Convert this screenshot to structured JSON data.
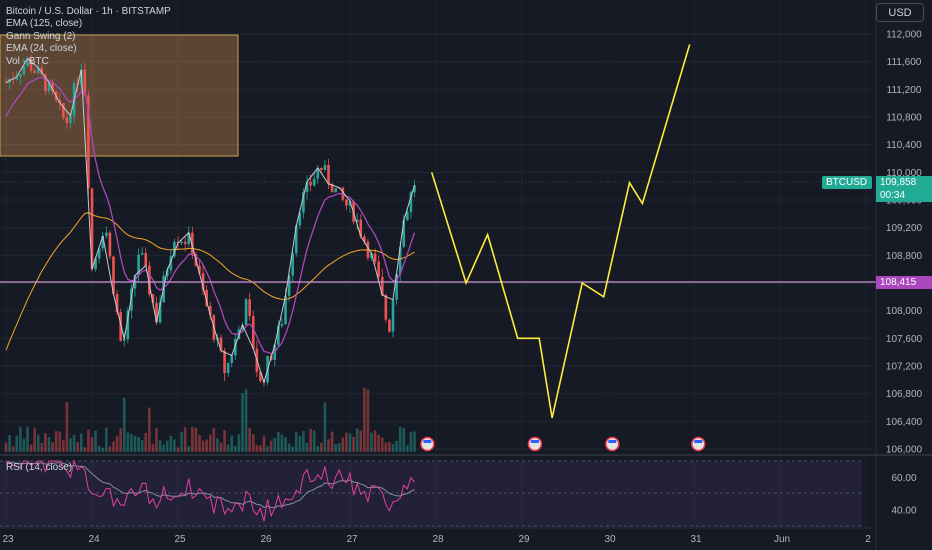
{
  "legend": {
    "symbol": "Bitcoin / U.S. Dollar · 1h · BITSTAMP",
    "ema125": "EMA (125, close)",
    "gann": "Gann Swing (2)",
    "ema24": "EMA (24, close)",
    "vol": "Vol · BTC"
  },
  "rsi_legend": "RSI (14, close)",
  "currency_button": "USD",
  "tags": {
    "ticker": "BTCUSD",
    "last_price": "109,858",
    "countdown": "00:34",
    "level_price": "108,415"
  },
  "colors": {
    "up": "#26a69a",
    "down": "#ef5350",
    "ema24": "#ab47bc",
    "ema125": "#f6a623",
    "projection": "#ffeb3b",
    "level": "#ce93d8",
    "rsi": "#e040a0",
    "ticker_tag": "#22ab94"
  },
  "chart_data": {
    "type": "candlestick",
    "price_axis": [
      "112,000",
      "111,600",
      "111,200",
      "110,800",
      "110,400",
      "110,000",
      "109,600",
      "109,200",
      "108,800",
      "108,400",
      "108,000",
      "107,600",
      "107,200",
      "106,800",
      "106,400",
      "106,000"
    ],
    "time_axis": [
      "23",
      "24",
      "25",
      "26",
      "27",
      "28",
      "29",
      "30",
      "31",
      "Jun",
      "2"
    ],
    "rsi_axis": [
      "60.00",
      "40.00"
    ],
    "horizontal_level": 108415,
    "last_price": 109858,
    "projection_path": [
      {
        "date": "27.95",
        "price": 110000
      },
      {
        "date": "28.35",
        "price": 108400
      },
      {
        "date": "28.6",
        "price": 109100
      },
      {
        "date": "28.95",
        "price": 107600
      },
      {
        "date": "29.2",
        "price": 107600
      },
      {
        "date": "29.35",
        "price": 106450
      },
      {
        "date": "29.7",
        "price": 108400
      },
      {
        "date": "29.95",
        "price": 108200
      },
      {
        "date": "30.25",
        "price": 109850
      },
      {
        "date": "30.4",
        "price": 109550
      },
      {
        "date": "30.95",
        "price": 111850
      }
    ]
  }
}
